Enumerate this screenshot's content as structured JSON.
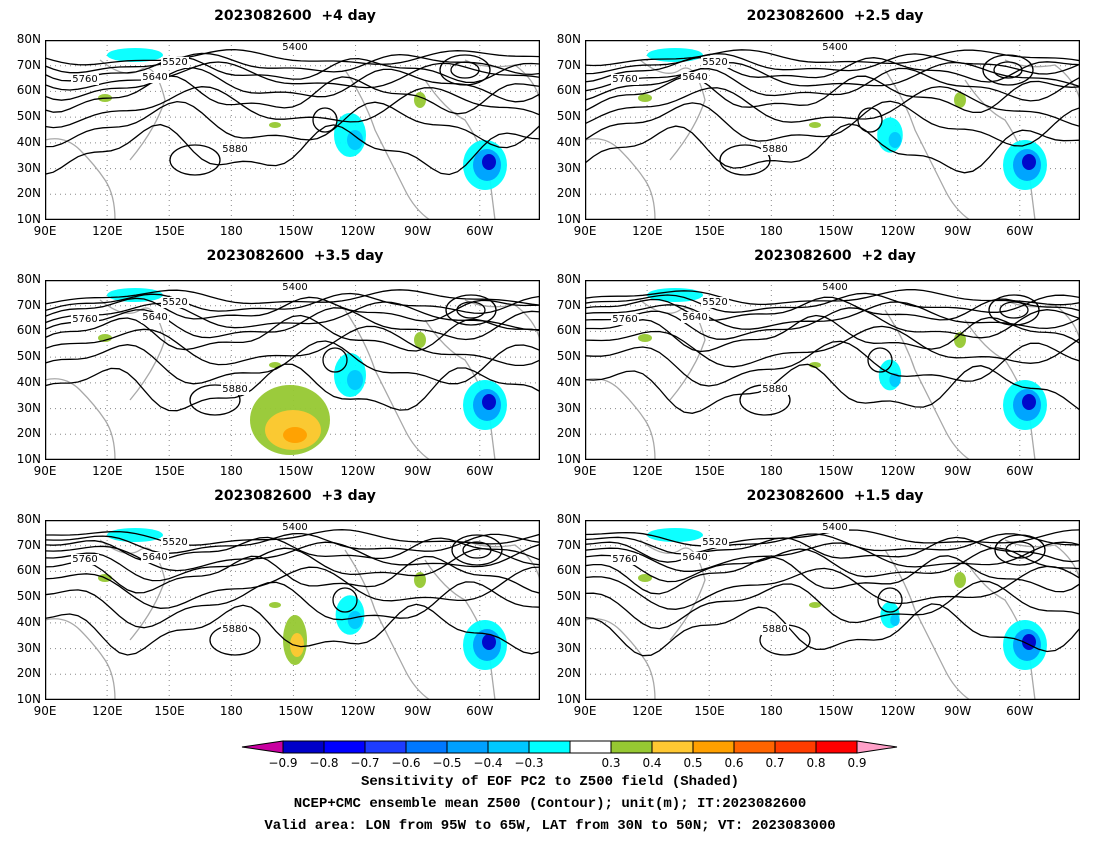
{
  "panels": [
    {
      "title": "2023082600  +4 day",
      "col": 0,
      "row": 0,
      "spread": 1.0
    },
    {
      "title": "2023082600  +2.5 day",
      "col": 1,
      "row": 0,
      "spread": 0.8
    },
    {
      "title": "2023082600  +3.5 day",
      "col": 0,
      "row": 1,
      "spread": 1.0
    },
    {
      "title": "2023082600  +2 day",
      "col": 1,
      "row": 1,
      "spread": 0.7
    },
    {
      "title": "2023082600  +3 day",
      "col": 0,
      "row": 2,
      "spread": 0.9
    },
    {
      "title": "2023082600  +1.5 day",
      "col": 1,
      "row": 2,
      "spread": 0.6
    }
  ],
  "lat_ticks": [
    "10N",
    "20N",
    "30N",
    "40N",
    "50N",
    "60N",
    "70N",
    "80N"
  ],
  "lon_ticks": [
    "90E",
    "120E",
    "150E",
    "180",
    "150W",
    "120W",
    "90W",
    "60W"
  ],
  "contour_labels": [
    "5400",
    "5520",
    "5640",
    "5760",
    "5880"
  ],
  "colorbar": {
    "labels": [
      "−0.9",
      "−0.8",
      "−0.7",
      "−0.6",
      "−0.5",
      "−0.4",
      "−0.3",
      "0.3",
      "0.4",
      "0.5",
      "0.6",
      "0.7",
      "0.8",
      "0.9"
    ],
    "colors": [
      "#0000c8",
      "#0000ff",
      "#1e3cff",
      "#0078ff",
      "#00a0ff",
      "#00c8ff",
      "#00ffff",
      "#ffffff",
      "#96c832",
      "#ffc832",
      "#ffa000",
      "#ff6400",
      "#ff3c00",
      "#ff0000"
    ],
    "low_end_color": "#c800a0",
    "high_end_color": "#ffa0c8"
  },
  "caption": [
    "Sensitivity of EOF PC2 to Z500 field (Shaded)",
    "NCEP+CMC ensemble mean Z500 (Contour); unit(m); IT:2023082600",
    "Valid area: LON from 95W to 65W, LAT from 30N to 50N; VT: 2023083000"
  ]
}
